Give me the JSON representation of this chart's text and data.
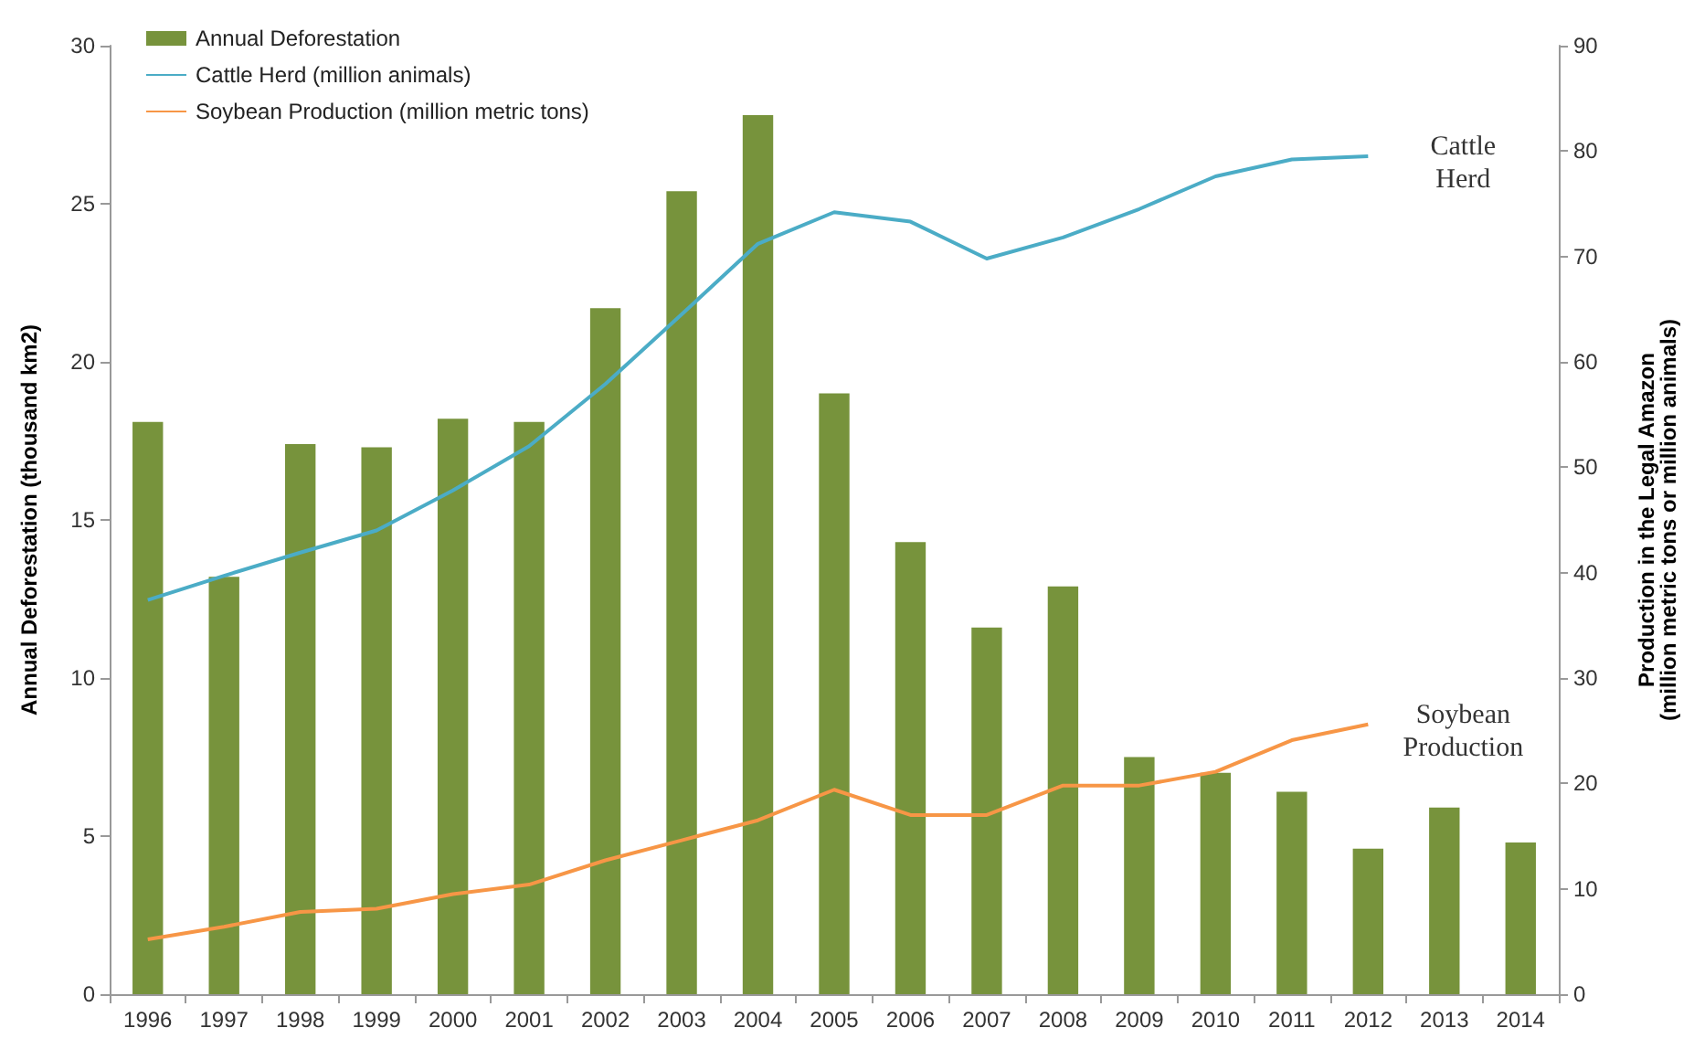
{
  "chart_data": {
    "type": "bar",
    "ylabel": "Annual Deforestation (thousand km2)",
    "y2label": "Production in the Legal Amazon\n(million metric tons or million animals)",
    "categories": [
      "1996",
      "1997",
      "1998",
      "1999",
      "2000",
      "2001",
      "2002",
      "2003",
      "2004",
      "2005",
      "2006",
      "2007",
      "2008",
      "2009",
      "2010",
      "2011",
      "2012",
      "2013",
      "2014"
    ],
    "series": [
      {
        "name": "Annual Deforestation",
        "color": "#77933c",
        "values": [
          18.1,
          13.2,
          17.4,
          17.3,
          18.2,
          18.1,
          21.7,
          25.4,
          27.8,
          19.0,
          14.3,
          11.6,
          12.9,
          7.5,
          7.0,
          6.4,
          4.6,
          5.9,
          4.8
        ]
      },
      {
        "name": "Cattle Herd (million animals)",
        "type": "line",
        "axis": "y2",
        "color": "#4bacc6",
        "values": [
          37.4,
          39.7,
          41.9,
          44,
          47.8,
          52,
          57.9,
          64.5,
          71.2,
          74.2,
          73.3,
          69.8,
          71.8,
          74.5,
          77.6,
          79.2,
          79.5,
          null,
          null
        ]
      },
      {
        "name": "Soybean Production (million metric tons)",
        "type": "line",
        "axis": "y2",
        "color": "#f79646",
        "values": [
          5.2,
          6.4,
          7.8,
          8.1,
          9.5,
          10.4,
          12.7,
          14.6,
          16.5,
          19.4,
          17,
          17,
          19.8,
          19.8,
          21.1,
          24.1,
          25.6,
          null,
          null
        ]
      }
    ],
    "ylim": [
      0,
      30
    ],
    "yticks": [
      0,
      5,
      10,
      15,
      20,
      25,
      30
    ],
    "y2lim": [
      0,
      90
    ],
    "y2ticks": [
      0,
      10,
      20,
      30,
      40,
      50,
      60,
      70,
      80,
      90
    ],
    "annotations": [
      "Cattle\nHerd",
      "Soybean\nProduction"
    ],
    "legend": "top left",
    "grid": false,
    "marker": "none",
    "line_style": "solid"
  }
}
